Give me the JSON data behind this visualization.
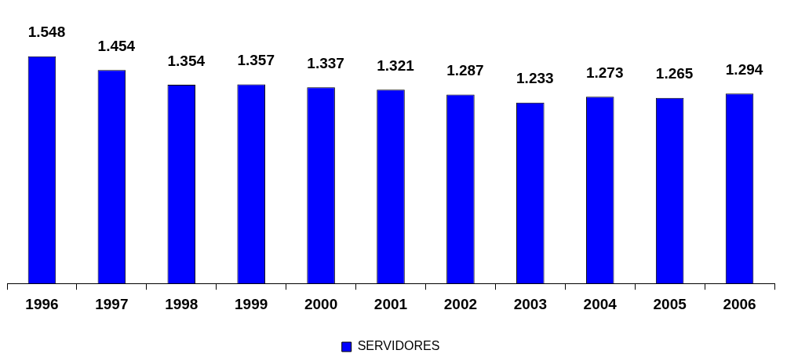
{
  "chart_data": {
    "type": "bar",
    "categories": [
      "1996",
      "1997",
      "1998",
      "1999",
      "2000",
      "2001",
      "2002",
      "2003",
      "2004",
      "2005",
      "2006"
    ],
    "series": [
      {
        "name": "SERVIDORES",
        "color": "#0000ff",
        "values": [
          1548,
          1454,
          1354,
          1357,
          1337,
          1321,
          1287,
          1233,
          1273,
          1265,
          1294
        ],
        "value_labels": [
          "1.548",
          "1.454",
          "1.354",
          "1.357",
          "1.337",
          "1.321",
          "1.287",
          "1.233",
          "1.273",
          "1.265",
          "1.294"
        ]
      }
    ],
    "tick_labels": "x",
    "grid": false,
    "legend": "bottom"
  }
}
